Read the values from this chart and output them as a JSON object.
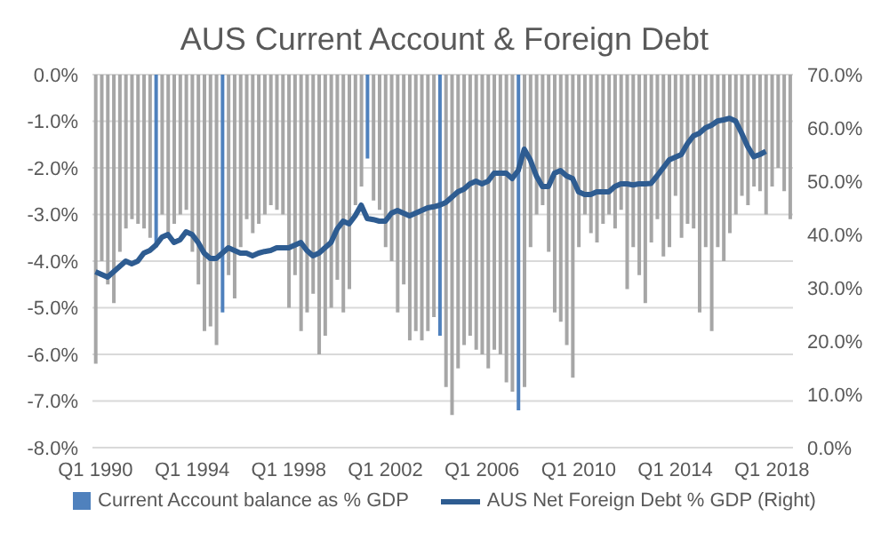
{
  "chart_data": {
    "type": "bar",
    "title": "AUS Current Account & Foreign Debt",
    "categories": [
      "Q1 1990",
      null,
      null,
      null,
      null,
      null,
      null,
      null,
      null,
      null,
      null,
      null,
      null,
      null,
      null,
      null,
      "Q1 1994",
      null,
      null,
      null,
      null,
      null,
      null,
      null,
      null,
      null,
      null,
      null,
      null,
      null,
      null,
      null,
      "Q1 1998",
      null,
      null,
      null,
      null,
      null,
      null,
      null,
      null,
      null,
      null,
      null,
      null,
      null,
      null,
      null,
      "Q1 2002",
      null,
      null,
      null,
      null,
      null,
      null,
      null,
      null,
      null,
      null,
      null,
      null,
      null,
      null,
      null,
      "Q1 2006",
      null,
      null,
      null,
      null,
      null,
      null,
      null,
      null,
      null,
      null,
      null,
      null,
      null,
      null,
      null,
      "Q1 2010",
      null,
      null,
      null,
      null,
      null,
      null,
      null,
      null,
      null,
      null,
      null,
      null,
      null,
      null,
      null,
      "Q1 2014",
      null,
      null,
      null,
      null,
      null,
      null,
      null,
      null,
      null,
      null,
      null,
      null,
      null,
      null,
      null,
      "Q1 2018",
      null,
      null,
      null
    ],
    "series": [
      {
        "name": "Current Account balance as % GDP",
        "color": "#4f81bd",
        "values": [
          -6.2,
          -4.0,
          -4.5,
          -4.9,
          -3.8,
          -3.3,
          -3.1,
          -3.2,
          -3.3,
          -3.5,
          -3.7,
          -3.0,
          -3.4,
          -3.2,
          -3.0,
          -2.9,
          -3.8,
          -4.5,
          -5.5,
          -5.4,
          -5.8,
          -5.1,
          -4.3,
          -4.8,
          -3.7,
          -3.1,
          -3.4,
          -3.2,
          -3.0,
          -2.8,
          -2.9,
          -3.0,
          -5.0,
          -4.3,
          -5.5,
          -5.1,
          -4.7,
          -6.0,
          -5.6,
          -5.0,
          -4.4,
          -5.1,
          -4.6,
          -2.8,
          -2.4,
          -1.8,
          -2.7,
          -2.9,
          -3.7,
          -4.0,
          -5.1,
          -4.5,
          -5.7,
          -5.5,
          -5.7,
          -5.5,
          -5.2,
          -5.6,
          -6.7,
          -7.3,
          -6.3,
          -5.8,
          -5.6,
          -5.9,
          -6.0,
          -6.3,
          -5.9,
          -6.0,
          -6.6,
          -6.8,
          -7.2,
          -6.7,
          -3.7,
          -3.0,
          -2.8,
          -3.8,
          -5.1,
          -5.3,
          -5.8,
          -6.5,
          -3.7,
          -3.0,
          -3.4,
          -3.6,
          -3.2,
          -3.0,
          -3.3,
          -2.9,
          -4.6,
          -3.7,
          -4.3,
          -4.9,
          -3.6,
          -3.1,
          -3.9,
          -3.7,
          -2.6,
          -3.5,
          -3.2,
          -3.3,
          -5.1,
          -3.7,
          -5.5,
          -3.7,
          -4.0,
          -3.4,
          -3.0,
          -2.6,
          -2.8,
          -2.4,
          -2.5,
          -3.0,
          -2.4,
          -2.0,
          -2.5,
          -3.1
        ],
        "colors": [
          "#a6a6a6",
          "#a6a6a6",
          "#a6a6a6",
          "#a6a6a6",
          "#a6a6a6",
          "#a6a6a6",
          "#a6a6a6",
          "#a6a6a6",
          "#a6a6a6",
          "#a6a6a6",
          "#4f81bd",
          "#a6a6a6",
          "#a6a6a6",
          "#a6a6a6",
          "#a6a6a6",
          "#a6a6a6",
          "#a6a6a6",
          "#a6a6a6",
          "#a6a6a6",
          "#a6a6a6",
          "#a6a6a6",
          "#4f81bd",
          "#a6a6a6",
          "#a6a6a6",
          "#a6a6a6",
          "#a6a6a6",
          "#a6a6a6",
          "#a6a6a6",
          "#a6a6a6",
          "#a6a6a6",
          "#a6a6a6",
          "#a6a6a6",
          "#a6a6a6",
          "#a6a6a6",
          "#a6a6a6",
          "#a6a6a6",
          "#a6a6a6",
          "#a6a6a6",
          "#a6a6a6",
          "#a6a6a6",
          "#a6a6a6",
          "#a6a6a6",
          "#a6a6a6",
          "#a6a6a6",
          "#a6a6a6",
          "#4f81bd",
          "#a6a6a6",
          "#a6a6a6",
          "#a6a6a6",
          "#a6a6a6",
          "#a6a6a6",
          "#a6a6a6",
          "#a6a6a6",
          "#a6a6a6",
          "#a6a6a6",
          "#a6a6a6",
          "#a6a6a6",
          "#4f81bd",
          "#a6a6a6",
          "#a6a6a6",
          "#a6a6a6",
          "#a6a6a6",
          "#a6a6a6",
          "#a6a6a6",
          "#a6a6a6",
          "#a6a6a6",
          "#a6a6a6",
          "#a6a6a6",
          "#a6a6a6",
          "#a6a6a6",
          "#4f81bd",
          "#a6a6a6",
          "#a6a6a6",
          "#a6a6a6",
          "#a6a6a6",
          "#a6a6a6",
          "#a6a6a6",
          "#a6a6a6",
          "#a6a6a6",
          "#a6a6a6",
          "#a6a6a6",
          "#a6a6a6",
          "#a6a6a6",
          "#a6a6a6",
          "#a6a6a6",
          "#a6a6a6",
          "#a6a6a6",
          "#a6a6a6",
          "#a6a6a6",
          "#a6a6a6",
          "#a6a6a6",
          "#a6a6a6",
          "#a6a6a6",
          "#a6a6a6",
          "#a6a6a6",
          "#a6a6a6",
          "#a6a6a6",
          "#a6a6a6",
          "#a6a6a6",
          "#a6a6a6",
          "#a6a6a6",
          "#a6a6a6",
          "#a6a6a6",
          "#a6a6a6",
          "#a6a6a6",
          "#a6a6a6",
          "#a6a6a6",
          "#a6a6a6",
          "#a6a6a6",
          "#a6a6a6",
          "#a6a6a6",
          "#a6a6a6",
          "#a6a6a6",
          "#a6a6a6",
          "#a6a6a6",
          "#a6a6a6"
        ]
      },
      {
        "name": "AUS Net Foreign Debt % GDP (Right)",
        "type": "line",
        "axis": "y2",
        "color": "#2e5c91",
        "values": [
          33,
          32.5,
          32,
          33,
          34,
          35,
          34.5,
          35,
          36.5,
          37,
          38,
          39.5,
          40,
          38.5,
          39,
          40.5,
          40,
          38.5,
          36.5,
          35.5,
          35.5,
          36.5,
          37.5,
          37,
          36.5,
          36.5,
          36,
          36.5,
          36.8,
          37,
          37.5,
          37.5,
          37.5,
          38,
          38.5,
          37,
          36,
          36.5,
          37.5,
          38.5,
          41,
          42.5,
          42,
          43.5,
          45.5,
          43,
          42.8,
          42.5,
          42.5,
          44,
          44.5,
          44,
          43.5,
          44,
          44.5,
          45,
          45.2,
          45.5,
          46,
          47,
          48,
          48.5,
          49.5,
          50,
          49.5,
          50,
          51.5,
          51.5,
          51.5,
          50.5,
          52,
          56,
          54,
          51,
          49,
          49,
          51.5,
          52,
          51,
          50.5,
          48,
          47.5,
          47.5,
          48,
          48,
          48,
          49,
          49.5,
          49.5,
          49.3,
          49.5,
          49.5,
          49.6,
          51,
          52.5,
          54,
          54.5,
          55,
          57,
          58.5,
          59,
          60,
          60.5,
          61.3,
          61.5,
          61.8,
          61.3,
          59,
          56.5,
          54.6,
          55,
          55.6,
          null,
          null,
          null,
          null
        ]
      }
    ],
    "ylim": [
      -8,
      0
    ],
    "yticks": [
      {
        "value": -8,
        "label": "-8.0%"
      },
      {
        "value": -7,
        "label": "-7.0%"
      },
      {
        "value": -6,
        "label": "-6.0%"
      },
      {
        "value": -5,
        "label": "-5.0%"
      },
      {
        "value": -4,
        "label": "-4.0%"
      },
      {
        "value": -3,
        "label": "-3.0%"
      },
      {
        "value": -2,
        "label": "-2.0%"
      },
      {
        "value": -1,
        "label": "-1.0%"
      },
      {
        "value": 0,
        "label": "0.0%"
      }
    ],
    "y2lim": [
      0,
      70
    ],
    "y2ticks": [
      {
        "value": 0,
        "label": "0.0%"
      },
      {
        "value": 10,
        "label": "10.0%"
      },
      {
        "value": 20,
        "label": "20.0%"
      },
      {
        "value": 30,
        "label": "30.0%"
      },
      {
        "value": 40,
        "label": "40.0%"
      },
      {
        "value": 50,
        "label": "50.0%"
      },
      {
        "value": 60,
        "label": "60.0%"
      },
      {
        "value": 70,
        "label": "70.0%"
      }
    ],
    "grid": "y",
    "legend": "bottom",
    "marker": "none",
    "line_style": "solid"
  }
}
